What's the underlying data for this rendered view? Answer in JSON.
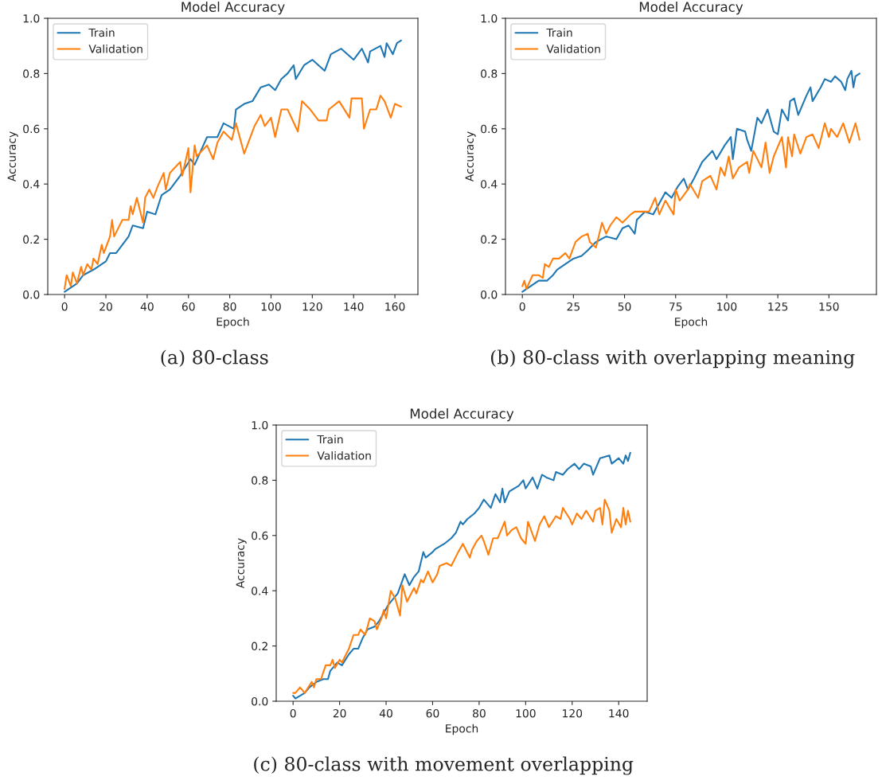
{
  "chart_data": [
    {
      "type": "line",
      "title": "Model Accuracy",
      "xlabel": "Epoch",
      "ylabel": "Accuracy",
      "annotations": [
        "(a) 80-class"
      ],
      "legend": "top left",
      "xlim": [
        -8.15,
        171.15
      ],
      "ylim": [
        0,
        1
      ],
      "xticks": [
        0,
        20,
        40,
        60,
        80,
        100,
        120,
        140,
        160
      ],
      "yticks": [
        {
          "value": 0,
          "label": "0.0"
        },
        {
          "value": 0.2,
          "label": "0.2"
        },
        {
          "value": 0.4,
          "label": "0.4"
        },
        {
          "value": 0.6,
          "label": "0.6"
        },
        {
          "value": 0.8,
          "label": "0.8"
        },
        {
          "value": 1,
          "label": "1.0"
        }
      ],
      "series": [
        {
          "name": "Train",
          "color": "#1f77b4",
          "x": [
            0,
            6,
            9,
            14,
            20,
            22,
            25,
            31,
            33,
            38,
            40,
            44,
            47,
            51,
            56,
            61,
            63,
            69,
            74,
            77,
            82,
            83,
            87,
            91,
            95,
            99,
            102,
            105,
            108,
            111,
            112,
            116,
            120,
            126,
            129,
            134,
            140,
            144,
            147,
            148,
            153,
            155,
            156,
            159,
            161,
            163
          ],
          "values": [
            0.01,
            0.04,
            0.07,
            0.09,
            0.12,
            0.15,
            0.15,
            0.21,
            0.25,
            0.24,
            0.3,
            0.29,
            0.36,
            0.38,
            0.43,
            0.49,
            0.47,
            0.57,
            0.57,
            0.62,
            0.6,
            0.67,
            0.69,
            0.7,
            0.75,
            0.76,
            0.74,
            0.78,
            0.8,
            0.83,
            0.78,
            0.83,
            0.85,
            0.81,
            0.87,
            0.89,
            0.85,
            0.89,
            0.84,
            0.88,
            0.9,
            0.86,
            0.91,
            0.87,
            0.91,
            0.92
          ]
        },
        {
          "name": "Validation",
          "color": "#ff7f0e",
          "x": [
            0,
            1,
            3,
            4,
            6,
            8,
            9,
            11,
            13,
            14,
            16,
            18,
            19,
            22,
            23,
            24,
            28,
            31,
            32,
            33,
            35,
            38,
            39,
            41,
            43,
            45,
            48,
            49,
            51,
            56,
            57,
            60,
            61,
            63,
            64,
            69,
            72,
            74,
            77,
            81,
            83,
            87,
            90,
            92,
            95,
            97,
            100,
            102,
            105,
            108,
            113,
            115,
            119,
            123,
            127,
            128,
            133,
            138,
            139,
            144,
            145,
            148,
            151,
            153,
            155,
            158,
            160,
            163
          ],
          "values": [
            0.02,
            0.07,
            0.03,
            0.08,
            0.04,
            0.1,
            0.07,
            0.11,
            0.09,
            0.13,
            0.11,
            0.18,
            0.15,
            0.21,
            0.27,
            0.21,
            0.27,
            0.27,
            0.32,
            0.29,
            0.35,
            0.26,
            0.35,
            0.38,
            0.35,
            0.39,
            0.44,
            0.38,
            0.44,
            0.48,
            0.43,
            0.53,
            0.37,
            0.54,
            0.5,
            0.54,
            0.49,
            0.55,
            0.59,
            0.56,
            0.62,
            0.51,
            0.57,
            0.61,
            0.65,
            0.61,
            0.64,
            0.57,
            0.67,
            0.67,
            0.59,
            0.7,
            0.67,
            0.63,
            0.63,
            0.67,
            0.7,
            0.64,
            0.71,
            0.71,
            0.6,
            0.67,
            0.67,
            0.72,
            0.7,
            0.64,
            0.69,
            0.68
          ]
        }
      ]
    },
    {
      "type": "line",
      "title": "Model Accuracy",
      "xlabel": "Epoch",
      "ylabel": "Accuracy",
      "annotations": [
        "(b) 80-class with overlapping meaning"
      ],
      "legend": "top left",
      "xlim": [
        -8.25,
        173.25
      ],
      "ylim": [
        0,
        1
      ],
      "xticks": [
        0,
        25,
        50,
        75,
        100,
        125,
        150
      ],
      "yticks": [
        {
          "value": 0,
          "label": "0.0"
        },
        {
          "value": 0.2,
          "label": "0.2"
        },
        {
          "value": 0.4,
          "label": "0.4"
        },
        {
          "value": 0.6,
          "label": "0.6"
        },
        {
          "value": 0.8,
          "label": "0.8"
        },
        {
          "value": 1,
          "label": "1.0"
        }
      ],
      "series": [
        {
          "name": "Train",
          "color": "#1f77b4",
          "x": [
            0,
            2,
            6,
            8,
            12,
            15,
            17,
            21,
            25,
            29,
            32,
            36,
            41,
            46,
            49,
            52,
            55,
            56,
            60,
            64,
            67,
            70,
            73,
            76,
            79,
            81,
            84,
            88,
            93,
            95,
            99,
            102,
            103,
            105,
            109,
            110,
            112,
            115,
            117,
            120,
            123,
            125,
            127,
            130,
            131,
            133,
            135,
            139,
            141,
            142,
            146,
            148,
            151,
            153,
            156,
            158,
            159,
            161,
            162,
            163,
            165
          ],
          "values": [
            0.01,
            0.02,
            0.04,
            0.05,
            0.05,
            0.07,
            0.09,
            0.11,
            0.13,
            0.14,
            0.16,
            0.19,
            0.21,
            0.2,
            0.24,
            0.25,
            0.22,
            0.27,
            0.3,
            0.29,
            0.33,
            0.37,
            0.35,
            0.39,
            0.42,
            0.38,
            0.42,
            0.48,
            0.52,
            0.49,
            0.54,
            0.57,
            0.49,
            0.6,
            0.59,
            0.56,
            0.52,
            0.64,
            0.62,
            0.67,
            0.59,
            0.58,
            0.67,
            0.63,
            0.7,
            0.71,
            0.65,
            0.72,
            0.75,
            0.7,
            0.75,
            0.78,
            0.77,
            0.79,
            0.77,
            0.74,
            0.78,
            0.81,
            0.75,
            0.79,
            0.8
          ]
        },
        {
          "name": "Validation",
          "color": "#ff7f0e",
          "x": [
            0,
            1,
            2,
            5,
            8,
            10,
            11,
            13,
            15,
            18,
            21,
            23,
            26,
            29,
            32,
            33,
            36,
            39,
            41,
            43,
            46,
            49,
            53,
            55,
            60,
            62,
            65,
            67,
            70,
            74,
            75,
            77,
            81,
            82,
            86,
            88,
            92,
            95,
            97,
            99,
            101,
            103,
            106,
            110,
            111,
            113,
            117,
            119,
            121,
            123,
            127,
            129,
            130,
            132,
            133,
            136,
            139,
            142,
            145,
            148,
            150,
            151,
            154,
            157,
            160,
            163,
            165
          ],
          "values": [
            0.03,
            0.05,
            0.02,
            0.07,
            0.07,
            0.06,
            0.11,
            0.1,
            0.13,
            0.13,
            0.15,
            0.13,
            0.19,
            0.21,
            0.22,
            0.19,
            0.17,
            0.26,
            0.22,
            0.25,
            0.28,
            0.26,
            0.29,
            0.3,
            0.3,
            0.3,
            0.35,
            0.29,
            0.34,
            0.29,
            0.38,
            0.34,
            0.38,
            0.4,
            0.35,
            0.41,
            0.43,
            0.38,
            0.46,
            0.43,
            0.5,
            0.42,
            0.46,
            0.48,
            0.44,
            0.52,
            0.46,
            0.55,
            0.44,
            0.5,
            0.57,
            0.46,
            0.57,
            0.5,
            0.58,
            0.51,
            0.57,
            0.58,
            0.53,
            0.62,
            0.57,
            0.6,
            0.57,
            0.62,
            0.55,
            0.62,
            0.56
          ]
        }
      ]
    },
    {
      "type": "line",
      "title": "Model Accuracy",
      "xlabel": "Epoch",
      "ylabel": "Accuracy",
      "annotations": [
        "(c) 80-class with movement overlapping"
      ],
      "legend": "top left",
      "xlim": [
        -7.25,
        152.25
      ],
      "ylim": [
        0,
        1
      ],
      "xticks": [
        0,
        20,
        40,
        60,
        80,
        100,
        120,
        140
      ],
      "yticks": [
        {
          "value": 0,
          "label": "0.0"
        },
        {
          "value": 0.2,
          "label": "0.2"
        },
        {
          "value": 0.4,
          "label": "0.4"
        },
        {
          "value": 0.6,
          "label": "0.6"
        },
        {
          "value": 0.8,
          "label": "0.8"
        },
        {
          "value": 1,
          "label": "1.0"
        }
      ],
      "series": [
        {
          "name": "Train",
          "color": "#1f77b4",
          "x": [
            0,
            1,
            3,
            5,
            7,
            10,
            13,
            15,
            16,
            19,
            21,
            24,
            26,
            28,
            30,
            32,
            35,
            37,
            39,
            41,
            44,
            45,
            48,
            50,
            52,
            54,
            56,
            57,
            60,
            61,
            63,
            65,
            68,
            70,
            72,
            73,
            75,
            78,
            80,
            82,
            85,
            87,
            89,
            90,
            91,
            93,
            97,
            99,
            100,
            103,
            105,
            107,
            109,
            112,
            113,
            116,
            118,
            121,
            123,
            125,
            128,
            129,
            131,
            132,
            136,
            137,
            140,
            142,
            143,
            144,
            145
          ],
          "values": [
            0.02,
            0.01,
            0.02,
            0.03,
            0.05,
            0.07,
            0.08,
            0.08,
            0.11,
            0.14,
            0.13,
            0.17,
            0.19,
            0.19,
            0.23,
            0.26,
            0.27,
            0.29,
            0.32,
            0.35,
            0.38,
            0.39,
            0.46,
            0.42,
            0.45,
            0.47,
            0.54,
            0.52,
            0.54,
            0.55,
            0.56,
            0.57,
            0.59,
            0.61,
            0.65,
            0.64,
            0.66,
            0.68,
            0.7,
            0.73,
            0.7,
            0.75,
            0.72,
            0.77,
            0.72,
            0.76,
            0.78,
            0.8,
            0.77,
            0.81,
            0.77,
            0.82,
            0.81,
            0.8,
            0.83,
            0.82,
            0.84,
            0.86,
            0.84,
            0.86,
            0.85,
            0.82,
            0.86,
            0.88,
            0.89,
            0.86,
            0.88,
            0.86,
            0.89,
            0.87,
            0.9
          ]
        },
        {
          "name": "Validation",
          "color": "#ff7f0e",
          "x": [
            0,
            1,
            3,
            5,
            8,
            9,
            10,
            12,
            14,
            16,
            17,
            18,
            20,
            21,
            24,
            26,
            28,
            29,
            31,
            33,
            35,
            36,
            38,
            39,
            40,
            42,
            44,
            46,
            47,
            49,
            52,
            53,
            55,
            56,
            58,
            60,
            62,
            63,
            66,
            68,
            71,
            73,
            76,
            77,
            79,
            81,
            82,
            84,
            86,
            88,
            91,
            92,
            94,
            96,
            98,
            100,
            101,
            104,
            106,
            108,
            110,
            113,
            115,
            116,
            119,
            120,
            122,
            124,
            126,
            129,
            130,
            132,
            133,
            134,
            136,
            137,
            139,
            141,
            142,
            143,
            144,
            145
          ],
          "values": [
            0.03,
            0.03,
            0.05,
            0.03,
            0.07,
            0.05,
            0.08,
            0.08,
            0.13,
            0.13,
            0.15,
            0.12,
            0.15,
            0.14,
            0.19,
            0.24,
            0.24,
            0.26,
            0.24,
            0.3,
            0.29,
            0.26,
            0.3,
            0.33,
            0.3,
            0.4,
            0.37,
            0.31,
            0.42,
            0.36,
            0.41,
            0.39,
            0.44,
            0.43,
            0.47,
            0.43,
            0.46,
            0.49,
            0.5,
            0.49,
            0.54,
            0.57,
            0.52,
            0.55,
            0.58,
            0.6,
            0.58,
            0.53,
            0.59,
            0.59,
            0.65,
            0.6,
            0.62,
            0.63,
            0.59,
            0.57,
            0.65,
            0.58,
            0.64,
            0.67,
            0.63,
            0.67,
            0.66,
            0.7,
            0.66,
            0.64,
            0.68,
            0.66,
            0.69,
            0.65,
            0.69,
            0.7,
            0.64,
            0.73,
            0.69,
            0.61,
            0.66,
            0.63,
            0.7,
            0.64,
            0.69,
            0.65
          ]
        }
      ]
    }
  ]
}
